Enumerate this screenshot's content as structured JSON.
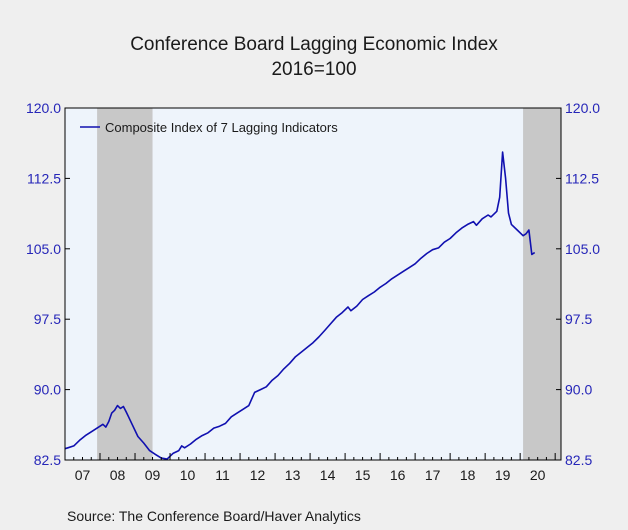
{
  "chart_data": {
    "type": "line",
    "title": "Conference Board Lagging Economic Index",
    "subtitle": "2016=100",
    "source": "Source:  The Conference Board/Haver Analytics",
    "ylim": [
      82.5,
      120.0
    ],
    "yticks": [
      82.5,
      90.0,
      97.5,
      105.0,
      112.5,
      120.0
    ],
    "ytick_labels": [
      "82.5",
      "90.0",
      "97.5",
      "105.0",
      "112.5",
      "120.0"
    ],
    "x_range": [
      "2007-01",
      "2021-02"
    ],
    "x_tick_labels": [
      "07",
      "08",
      "09",
      "10",
      "11",
      "12",
      "13",
      "14",
      "15",
      "16",
      "17",
      "18",
      "19",
      "20"
    ],
    "grid": false,
    "legend_position": "top-left",
    "recessions": [
      {
        "start": "2007-12",
        "end": "2009-06"
      },
      {
        "start": "2020-02",
        "end": "2021-02"
      }
    ],
    "colors": {
      "line": "#1010b0",
      "plot_bg": "#eef4fb",
      "recession": "#c8c8c8",
      "axis_text": "#2626b8"
    },
    "series": [
      {
        "name": "Composite Index of 7 Lagging Indicators",
        "points": [
          [
            "2007-01",
            83.7
          ],
          [
            "2007-02",
            83.8
          ],
          [
            "2007-04",
            84.0
          ],
          [
            "2007-06",
            84.6
          ],
          [
            "2007-08",
            85.1
          ],
          [
            "2007-10",
            85.5
          ],
          [
            "2007-12",
            85.9
          ],
          [
            "2008-02",
            86.3
          ],
          [
            "2008-03",
            86.0
          ],
          [
            "2008-04",
            86.6
          ],
          [
            "2008-05",
            87.5
          ],
          [
            "2008-06",
            87.8
          ],
          [
            "2008-07",
            88.3
          ],
          [
            "2008-08",
            88.0
          ],
          [
            "2008-09",
            88.2
          ],
          [
            "2008-10",
            87.6
          ],
          [
            "2008-12",
            86.3
          ],
          [
            "2009-02",
            85.0
          ],
          [
            "2009-04",
            84.3
          ],
          [
            "2009-06",
            83.5
          ],
          [
            "2009-08",
            83.1
          ],
          [
            "2009-10",
            82.7
          ],
          [
            "2009-12",
            82.6
          ],
          [
            "2010-02",
            83.2
          ],
          [
            "2010-04",
            83.5
          ],
          [
            "2010-05",
            84.0
          ],
          [
            "2010-06",
            83.8
          ],
          [
            "2010-08",
            84.2
          ],
          [
            "2010-10",
            84.7
          ],
          [
            "2010-12",
            85.1
          ],
          [
            "2011-02",
            85.4
          ],
          [
            "2011-04",
            85.9
          ],
          [
            "2011-06",
            86.1
          ],
          [
            "2011-08",
            86.4
          ],
          [
            "2011-10",
            87.1
          ],
          [
            "2011-12",
            87.5
          ],
          [
            "2012-02",
            87.9
          ],
          [
            "2012-04",
            88.3
          ],
          [
            "2012-06",
            89.7
          ],
          [
            "2012-08",
            90.0
          ],
          [
            "2012-10",
            90.3
          ],
          [
            "2012-12",
            91.0
          ],
          [
            "2013-02",
            91.5
          ],
          [
            "2013-04",
            92.2
          ],
          [
            "2013-06",
            92.8
          ],
          [
            "2013-08",
            93.5
          ],
          [
            "2013-10",
            94.0
          ],
          [
            "2013-12",
            94.5
          ],
          [
            "2014-02",
            95.0
          ],
          [
            "2014-04",
            95.6
          ],
          [
            "2014-06",
            96.3
          ],
          [
            "2014-08",
            97.0
          ],
          [
            "2014-10",
            97.7
          ],
          [
            "2014-12",
            98.2
          ],
          [
            "2015-02",
            98.8
          ],
          [
            "2015-03",
            98.4
          ],
          [
            "2015-05",
            98.9
          ],
          [
            "2015-07",
            99.6
          ],
          [
            "2015-09",
            100.0
          ],
          [
            "2015-11",
            100.4
          ],
          [
            "2016-01",
            100.9
          ],
          [
            "2016-03",
            101.3
          ],
          [
            "2016-05",
            101.8
          ],
          [
            "2016-07",
            102.2
          ],
          [
            "2016-09",
            102.6
          ],
          [
            "2016-11",
            103.0
          ],
          [
            "2017-01",
            103.4
          ],
          [
            "2017-03",
            104.0
          ],
          [
            "2017-05",
            104.5
          ],
          [
            "2017-07",
            104.9
          ],
          [
            "2017-09",
            105.1
          ],
          [
            "2017-11",
            105.7
          ],
          [
            "2018-01",
            106.1
          ],
          [
            "2018-03",
            106.7
          ],
          [
            "2018-05",
            107.2
          ],
          [
            "2018-07",
            107.6
          ],
          [
            "2018-09",
            107.9
          ],
          [
            "2018-10",
            107.5
          ],
          [
            "2018-12",
            108.2
          ],
          [
            "2019-02",
            108.6
          ],
          [
            "2019-03",
            108.4
          ],
          [
            "2019-05",
            109.0
          ],
          [
            "2019-06",
            110.5
          ],
          [
            "2019-07",
            115.3
          ],
          [
            "2019-08",
            112.5
          ],
          [
            "2019-09",
            108.8
          ],
          [
            "2019-10",
            107.6
          ],
          [
            "2019-12",
            107.0
          ],
          [
            "2020-02",
            106.4
          ],
          [
            "2020-03",
            106.6
          ],
          [
            "2020-04",
            107.0
          ],
          [
            "2020-05",
            104.4
          ],
          [
            "2020-06",
            104.6
          ]
        ]
      }
    ]
  }
}
